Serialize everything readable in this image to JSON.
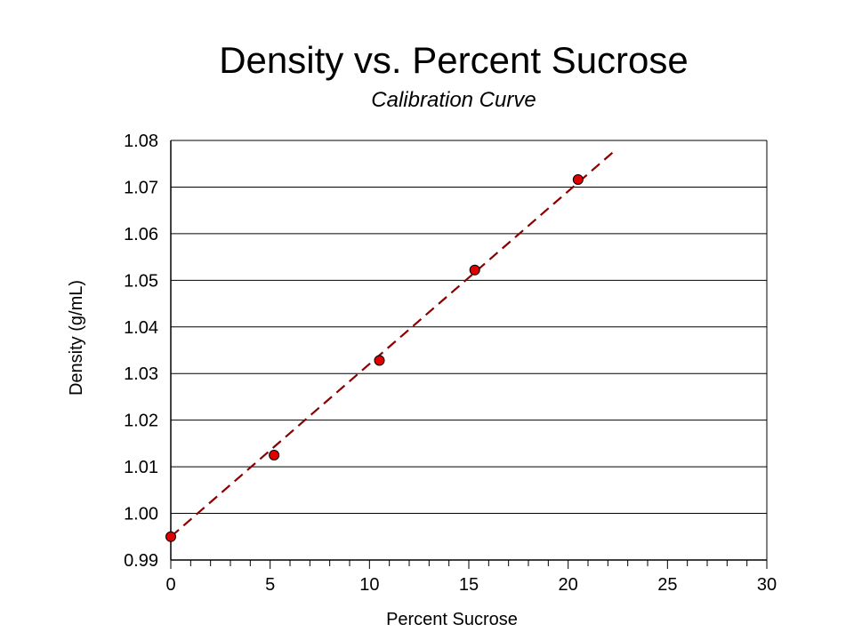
{
  "chart_data": {
    "type": "scatter",
    "title": "Density vs. Percent Sucrose",
    "subtitle": "Calibration Curve",
    "xlabel": "Percent Sucrose",
    "ylabel": "Density (g/mL)",
    "xlim": [
      0,
      30
    ],
    "ylim": [
      0.99,
      1.08
    ],
    "xticks": [
      "0",
      "5",
      "10",
      "15",
      "20",
      "25",
      "30"
    ],
    "yticks": [
      "0.99",
      "1.00",
      "1.01",
      "1.02",
      "1.03",
      "1.04",
      "1.05",
      "1.06",
      "1.07",
      "1.08"
    ],
    "grid": "horizontal",
    "point_color": "#e00000",
    "trendline_color": "#8b0000",
    "series": [
      {
        "x": [
          0,
          5.2,
          10.5,
          15.3,
          20.5
        ],
        "y": [
          0.995,
          1.0125,
          1.0328,
          1.0522,
          1.0716
        ]
      }
    ],
    "trendline": {
      "x": [
        0,
        22.4
      ],
      "y": [
        0.995,
        1.078
      ]
    }
  }
}
